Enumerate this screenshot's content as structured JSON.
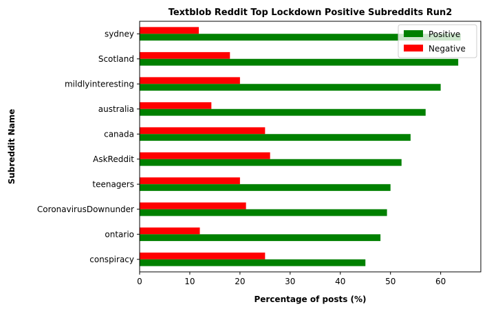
{
  "chart_data": {
    "type": "bar",
    "orientation": "horizontal",
    "title": "Textblob Reddit Top Lockdown Positive Subreddits Run2",
    "xlabel": "Percentage of posts (%)",
    "ylabel": "Subreddit Name",
    "xlim": [
      0,
      68
    ],
    "xticks": [
      0,
      10,
      20,
      30,
      40,
      50,
      60
    ],
    "legend_position": "top-right",
    "categories": [
      "sydney",
      "Scotland",
      "mildlyinteresting",
      "australia",
      "canada",
      "AskReddit",
      "teenagers",
      "CoronavirusDownunder",
      "ontario",
      "conspiracy"
    ],
    "series": [
      {
        "name": "Positive",
        "color": "#008000",
        "values": [
          64,
          63.5,
          60,
          57,
          54,
          52.2,
          50,
          49.3,
          48,
          45
        ]
      },
      {
        "name": "Negative",
        "color": "#ff0000",
        "values": [
          11.8,
          18,
          20,
          14.3,
          25,
          26,
          20,
          21.2,
          12,
          25
        ]
      }
    ]
  }
}
